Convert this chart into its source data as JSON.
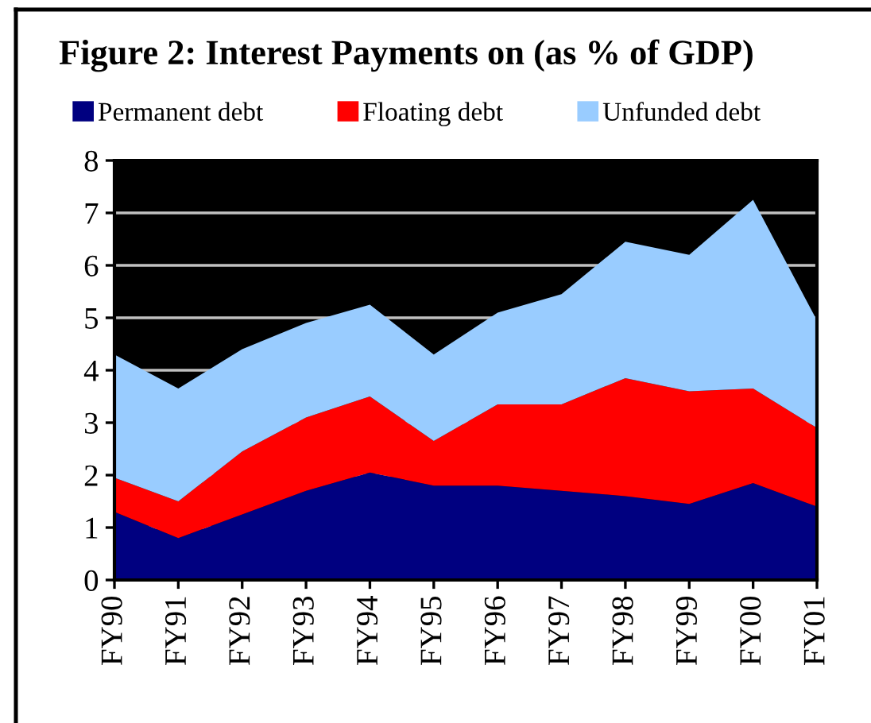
{
  "chart_data": {
    "type": "area",
    "title": "Figure 2: Interest Payments on (as % of GDP)",
    "categories": [
      "FY90",
      "FY91",
      "FY92",
      "FY93",
      "FY94",
      "FY95",
      "FY96",
      "FY97",
      "FY98",
      "FY99",
      "FY00",
      "FY01"
    ],
    "stacked": true,
    "series": [
      {
        "name": "Permanent debt",
        "color": "#000080",
        "values": [
          1.3,
          0.8,
          1.25,
          1.7,
          2.05,
          1.8,
          1.8,
          1.7,
          1.6,
          1.45,
          1.85,
          1.4
        ]
      },
      {
        "name": "Floating debt",
        "color": "#ff0000",
        "values": [
          0.65,
          0.7,
          1.2,
          1.4,
          1.45,
          0.85,
          1.55,
          1.65,
          2.25,
          2.15,
          1.8,
          1.5
        ]
      },
      {
        "name": "Unfunded debt",
        "color": "#99ccff",
        "values": [
          2.35,
          2.15,
          1.95,
          1.8,
          1.75,
          1.65,
          1.75,
          2.1,
          2.6,
          2.6,
          3.6,
          2.05
        ]
      }
    ],
    "ylim": [
      0,
      8
    ],
    "yticks": [
      0,
      1,
      2,
      3,
      4,
      5,
      6,
      7,
      8
    ],
    "grid": "y",
    "legend": "top"
  }
}
